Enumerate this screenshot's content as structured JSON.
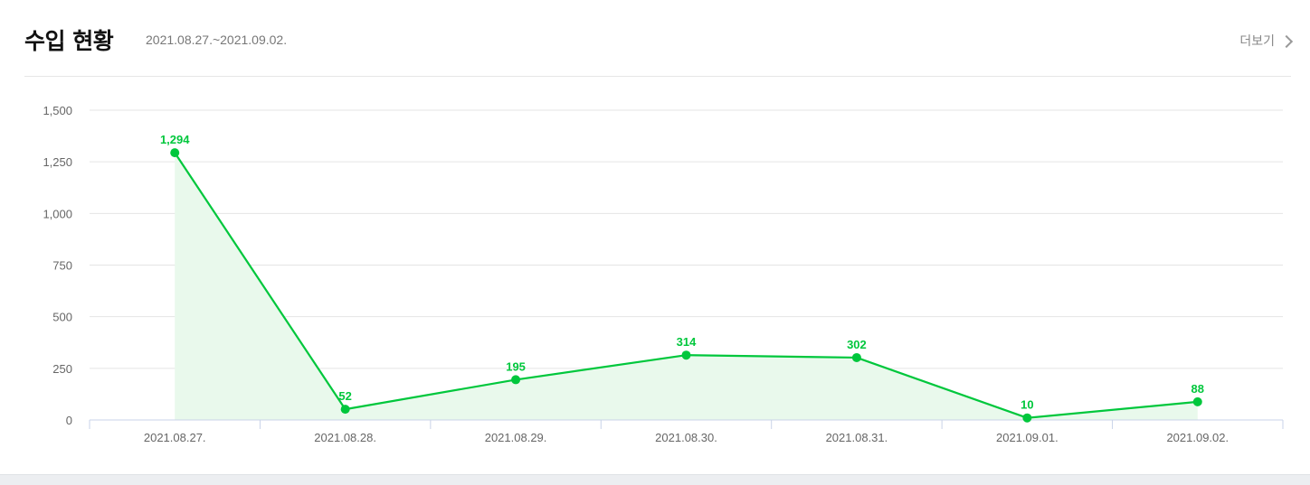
{
  "header": {
    "title": "수입 현황",
    "period": "2021.08.27.~2021.09.02.",
    "more_label": "더보기"
  },
  "colors": {
    "line": "#00c73c",
    "area": "#e9f9ec",
    "grid": "#e5e5e5",
    "axis": "#c9d3e8",
    "tick_text": "#666666"
  },
  "chart_data": {
    "type": "line",
    "categories": [
      "2021.08.27.",
      "2021.08.28.",
      "2021.08.29.",
      "2021.08.30.",
      "2021.08.31.",
      "2021.09.01.",
      "2021.09.02."
    ],
    "series": [
      {
        "values": [
          1294,
          52,
          195,
          314,
          302,
          10,
          88
        ]
      }
    ],
    "data_labels": [
      "1,294",
      "52",
      "195",
      "314",
      "302",
      "10",
      "88"
    ],
    "ylim": [
      0,
      1500
    ],
    "yticks": [
      0,
      250,
      500,
      750,
      1000,
      1250,
      1500
    ],
    "ytick_labels": [
      "0",
      "250",
      "500",
      "750",
      "1,000",
      "1,250",
      "1,500"
    ],
    "title": "",
    "xlabel": "",
    "ylabel": "",
    "grid": true,
    "legend": "none"
  }
}
